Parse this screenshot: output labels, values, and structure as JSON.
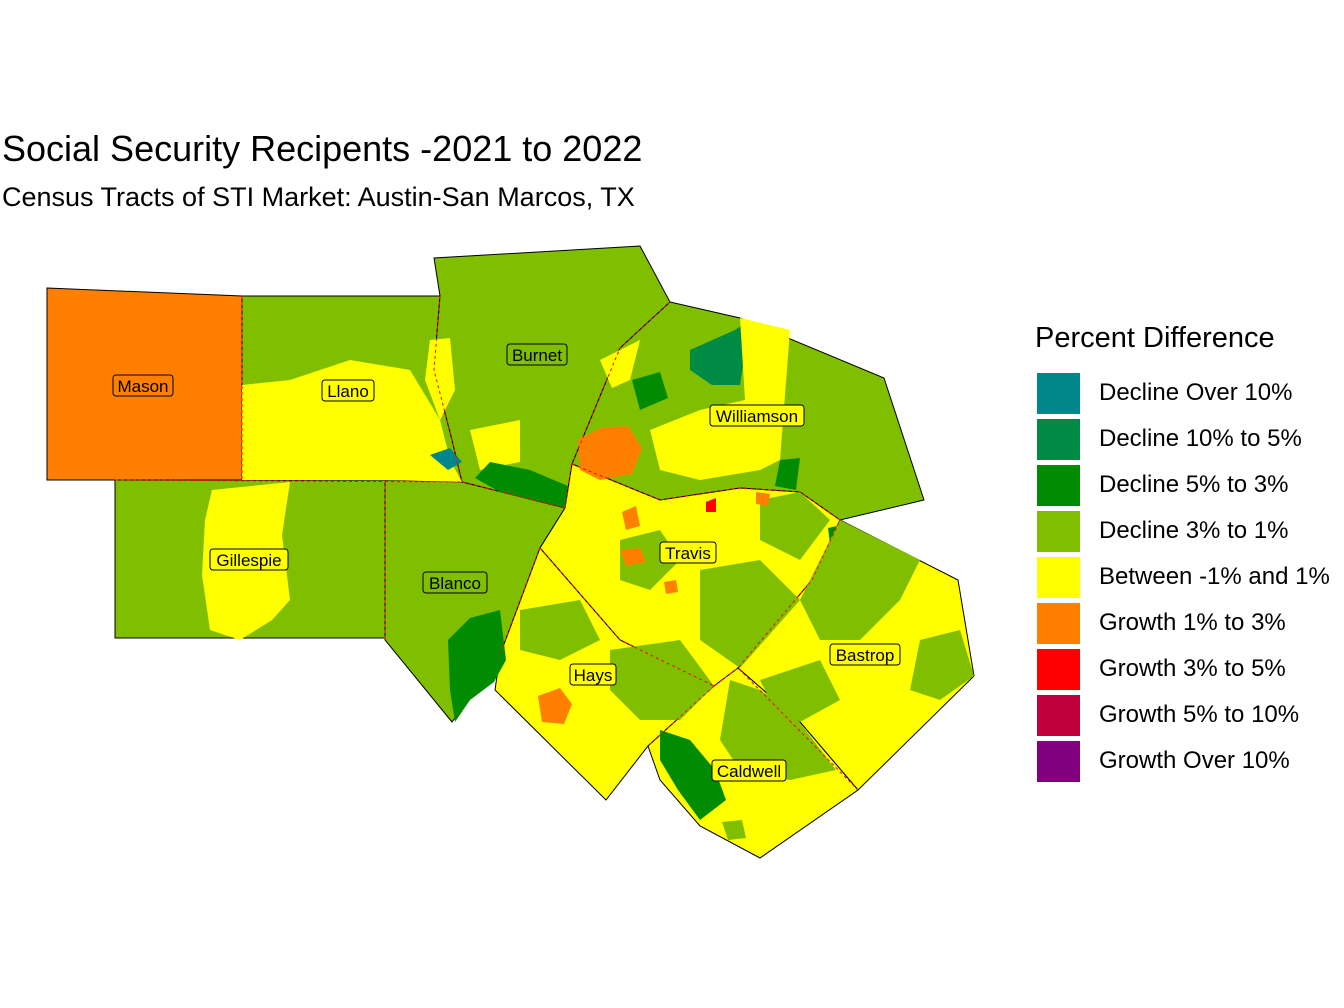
{
  "title": "Social Security Recipents -2021 to 2022",
  "subtitle": "Census Tracts of STI Market: Austin-San Marcos, TX",
  "legend": {
    "title": "Percent Difference",
    "items": [
      {
        "label": "Decline Over 10%",
        "color": "#00868B"
      },
      {
        "label": "Decline 10% to 5%",
        "color": "#008B45"
      },
      {
        "label": "Decline 5% to 3%",
        "color": "#008B00"
      },
      {
        "label": "Decline 3% to 1%",
        "color": "#7FBF00"
      },
      {
        "label": "Between -1% and 1%",
        "color": "#FFFF00"
      },
      {
        "label": "Growth 1% to 3%",
        "color": "#FF7F00"
      },
      {
        "label": "Growth 3% to 5%",
        "color": "#FF0000"
      },
      {
        "label": "Growth 5% to 10%",
        "color": "#C0003C"
      },
      {
        "label": "Growth Over 10%",
        "color": "#800080"
      }
    ]
  },
  "counties": [
    {
      "name": "Mason",
      "category": "Growth 1% to 3%"
    },
    {
      "name": "Llano",
      "category": "Between -1% and 1%"
    },
    {
      "name": "Burnet",
      "category": "Decline 3% to 1%"
    },
    {
      "name": "Williamson",
      "category": "Decline 3% to 1%"
    },
    {
      "name": "Gillespie",
      "category": "Decline 3% to 1%"
    },
    {
      "name": "Blanco",
      "category": "Decline 3% to 1%"
    },
    {
      "name": "Travis",
      "category": "Between -1% and 1%"
    },
    {
      "name": "Bastrop",
      "category": "Between -1% and 1%"
    },
    {
      "name": "Hays",
      "category": "Between -1% and 1%"
    },
    {
      "name": "Caldwell",
      "category": "Between -1% and 1%"
    }
  ],
  "colors": {
    "county_border": "#FF0000",
    "outline": "#000000",
    "background": "#FFFFFF"
  }
}
